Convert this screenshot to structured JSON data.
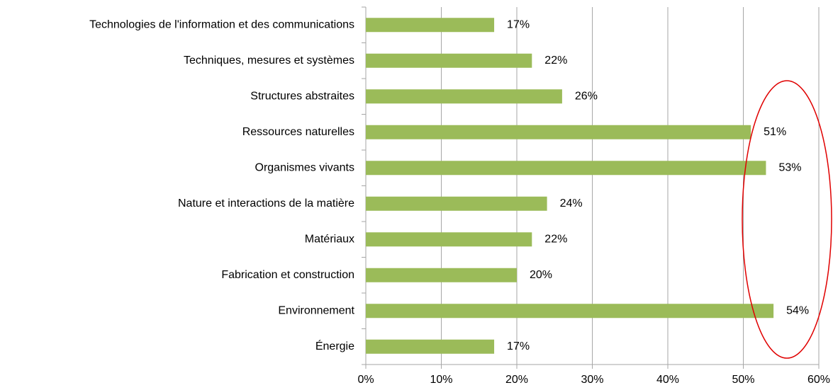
{
  "chart_data": {
    "type": "barh",
    "categories": [
      "Technologies de l'information et des communications",
      "Techniques, mesures et systèmes",
      "Structures abstraites",
      "Ressources naturelles",
      "Organismes vivants",
      "Nature et interactions de la matière",
      "Matériaux",
      "Fabrication et construction",
      "Environnement",
      "Énergie"
    ],
    "values": [
      17,
      22,
      26,
      51,
      53,
      24,
      22,
      20,
      54,
      17
    ],
    "value_labels": [
      "17%",
      "22%",
      "26%",
      "51%",
      "53%",
      "24%",
      "22%",
      "20%",
      "54%",
      "17%"
    ],
    "color": "#9bbb59",
    "xlim": [
      0,
      60
    ],
    "xticks": [
      {
        "value": 0,
        "label": "0%"
      },
      {
        "value": 10,
        "label": "10%"
      },
      {
        "value": 20,
        "label": "20%"
      },
      {
        "value": 30,
        "label": "30%"
      },
      {
        "value": 40,
        "label": "40%"
      },
      {
        "value": 50,
        "label": "50%"
      },
      {
        "value": 60,
        "label": "60%"
      }
    ],
    "grid": true
  }
}
